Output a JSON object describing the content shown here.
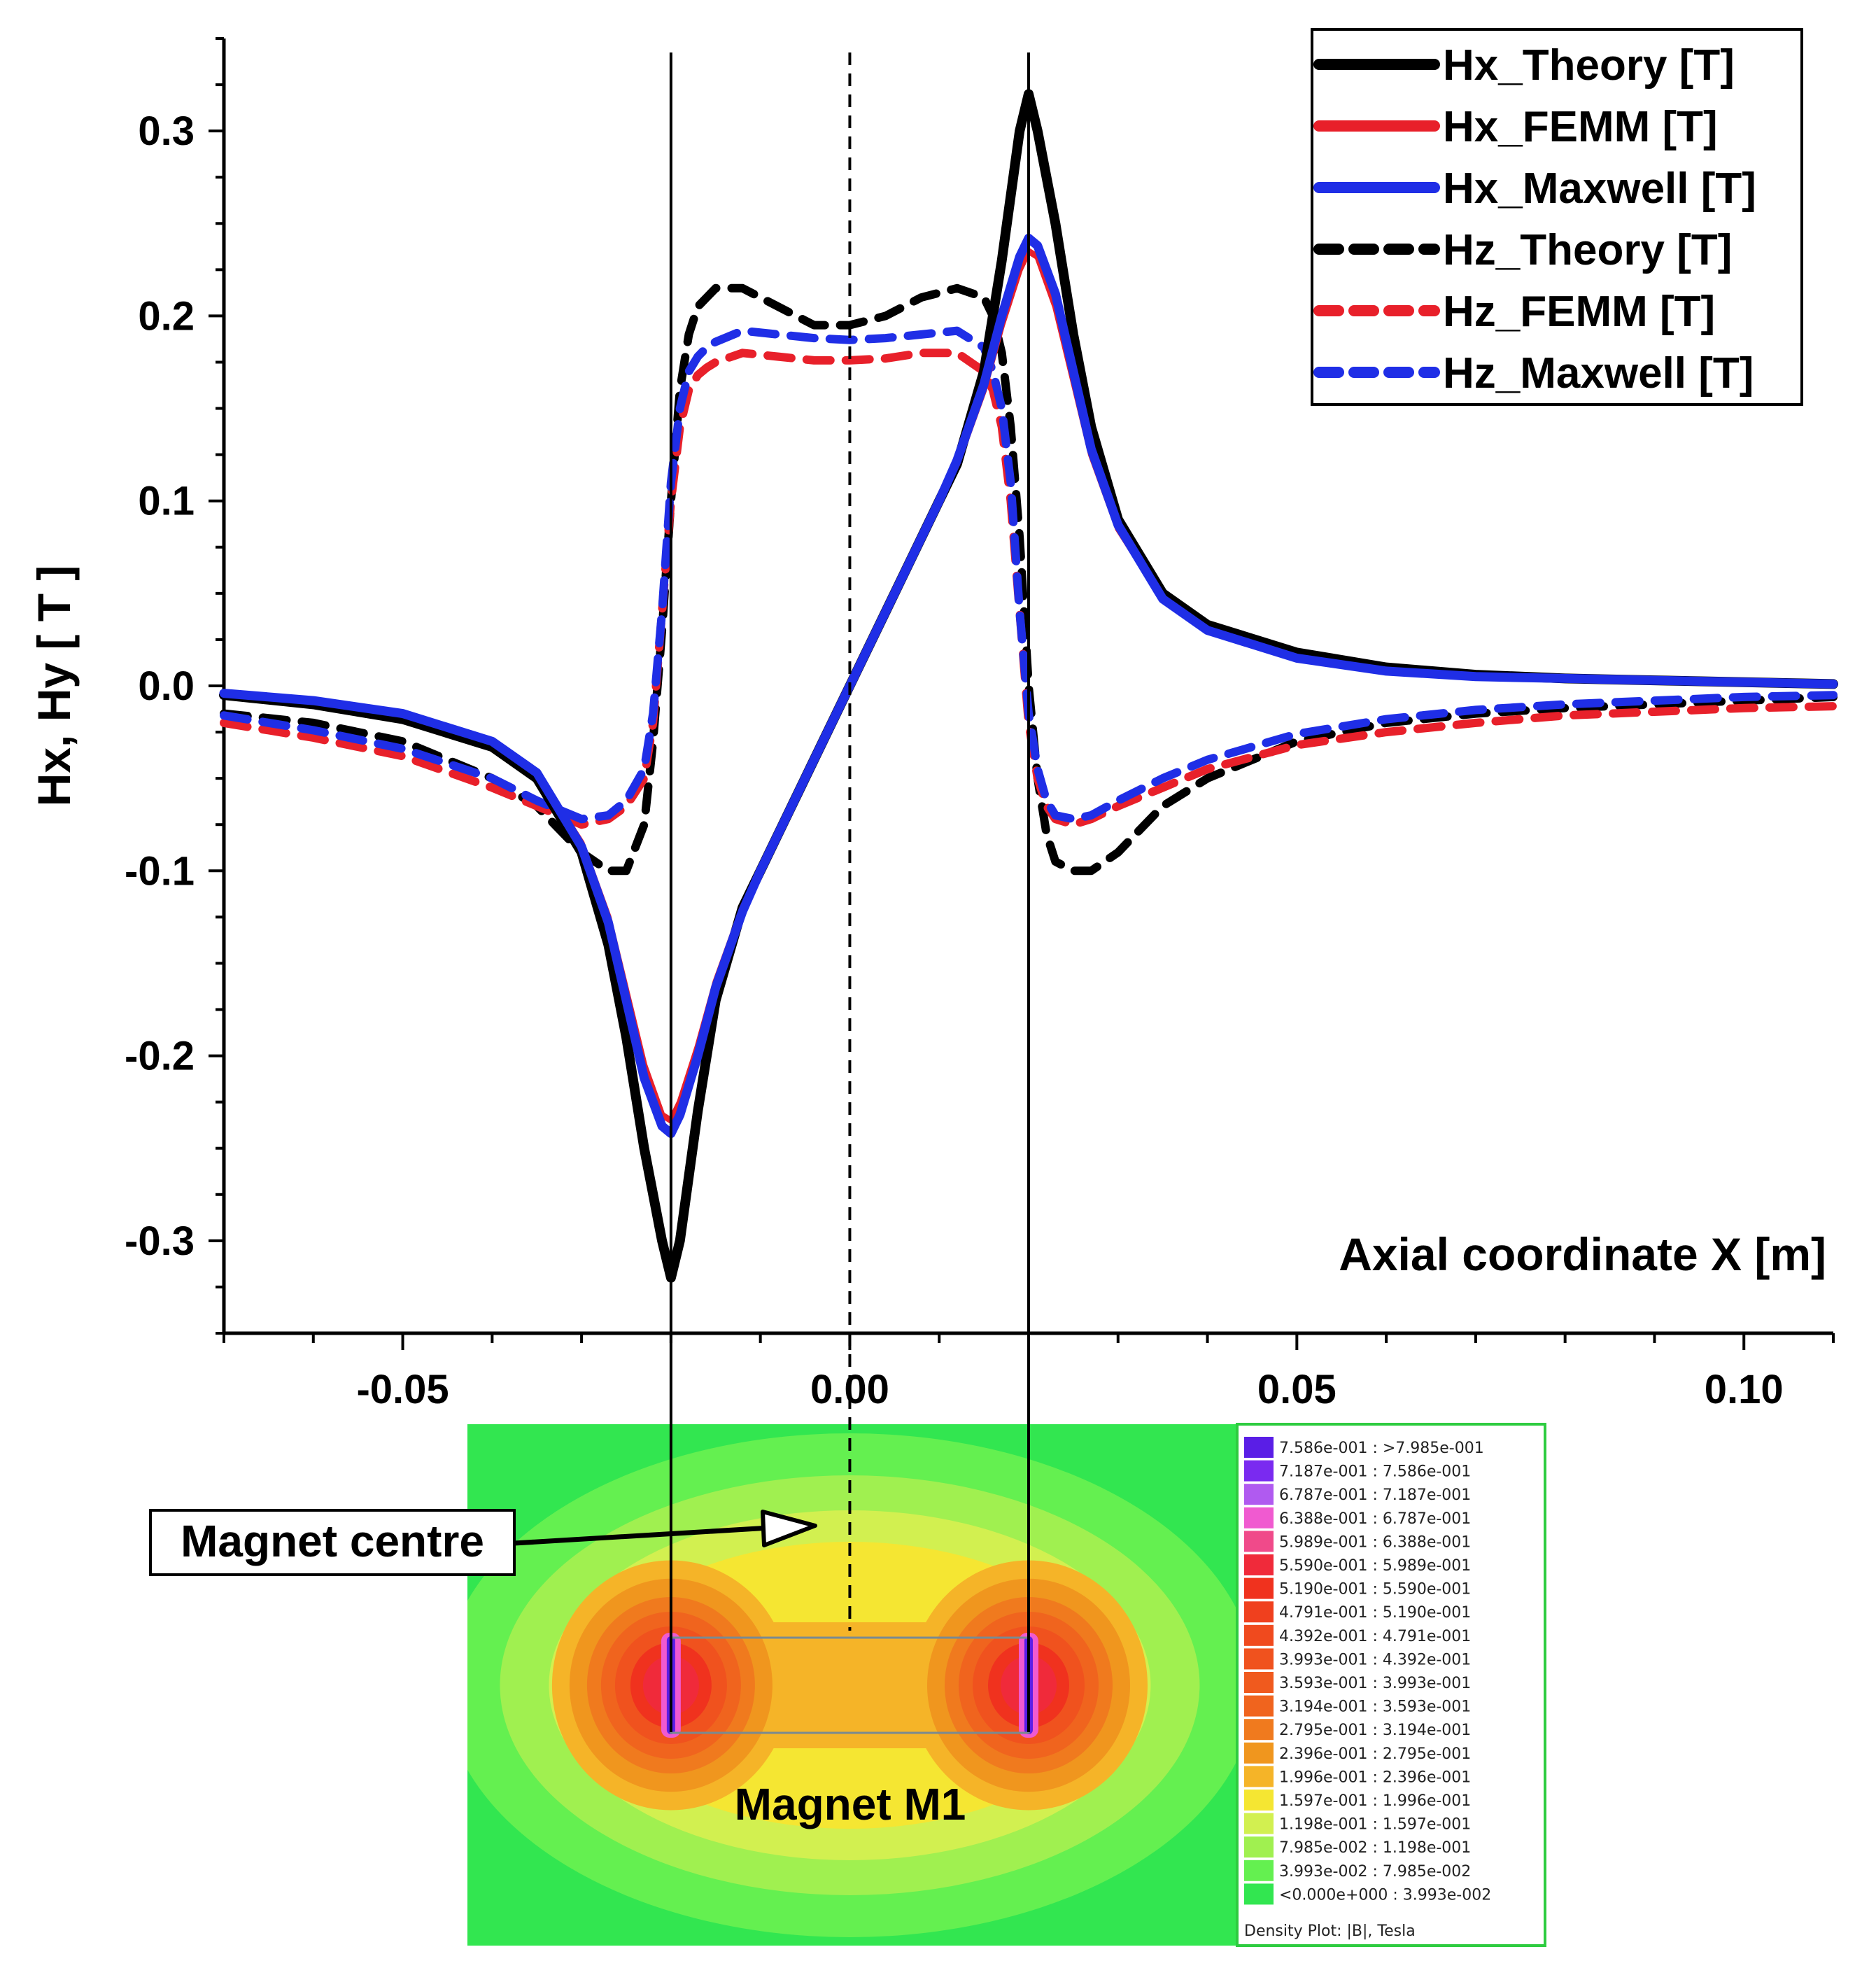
{
  "chart_data": {
    "type": "line",
    "xlabel": "Axial coordinate X [m]",
    "ylabel": "Hx, Hy [ T ]",
    "xlim": [
      -0.07,
      0.11
    ],
    "ylim": [
      -0.35,
      0.35
    ],
    "x_ticks": [
      -0.05,
      0.0,
      0.05,
      0.1
    ],
    "x_tick_labels": [
      "-0.05",
      "0.00",
      "0.05",
      "0.10"
    ],
    "y_ticks": [
      -0.3,
      -0.2,
      -0.1,
      0.0,
      0.1,
      0.2,
      0.3
    ],
    "y_tick_labels": [
      "-0.3",
      "-0.2",
      "-0.1",
      "0.0",
      "0.1",
      "0.2",
      "0.3"
    ],
    "grid": false,
    "legend_position": "top-right",
    "reference_lines": [
      {
        "x": -0.02,
        "style": "solid"
      },
      {
        "x": 0.0,
        "style": "dashed"
      },
      {
        "x": 0.02,
        "style": "solid"
      }
    ],
    "series": [
      {
        "name": "Hx_Theory [T]",
        "color": "#000000",
        "dash": "solid",
        "x": [
          -0.07,
          -0.06,
          -0.05,
          -0.04,
          -0.035,
          -0.03,
          -0.027,
          -0.025,
          -0.023,
          -0.021,
          -0.02,
          -0.019,
          -0.017,
          -0.015,
          -0.012,
          -0.01,
          -0.007,
          -0.004,
          0,
          0.004,
          0.007,
          0.01,
          0.012,
          0.015,
          0.017,
          0.019,
          0.02,
          0.021,
          0.023,
          0.025,
          0.027,
          0.03,
          0.035,
          0.04,
          0.05,
          0.06,
          0.07,
          0.08,
          0.09,
          0.1,
          0.11
        ],
        "y": [
          -0.005,
          -0.01,
          -0.018,
          -0.033,
          -0.05,
          -0.09,
          -0.14,
          -0.19,
          -0.25,
          -0.3,
          -0.32,
          -0.3,
          -0.23,
          -0.17,
          -0.12,
          -0.1,
          -0.07,
          -0.04,
          0,
          0.04,
          0.07,
          0.1,
          0.12,
          0.17,
          0.23,
          0.3,
          0.32,
          0.3,
          0.25,
          0.19,
          0.14,
          0.09,
          0.05,
          0.033,
          0.018,
          0.01,
          0.006,
          0.004,
          0.003,
          0.002,
          0.001
        ]
      },
      {
        "name": "Hx_FEMM [T]",
        "color": "#e8202a",
        "dash": "solid",
        "x": [
          -0.07,
          -0.06,
          -0.05,
          -0.04,
          -0.035,
          -0.03,
          -0.027,
          -0.025,
          -0.023,
          -0.021,
          -0.02,
          -0.019,
          -0.017,
          -0.015,
          -0.012,
          -0.01,
          -0.007,
          -0.004,
          0,
          0.004,
          0.007,
          0.01,
          0.012,
          0.015,
          0.017,
          0.019,
          0.02,
          0.021,
          0.023,
          0.025,
          0.027,
          0.03,
          0.035,
          0.04,
          0.05,
          0.06,
          0.07,
          0.08,
          0.09,
          0.1,
          0.11
        ],
        "y": [
          -0.004,
          -0.008,
          -0.015,
          -0.03,
          -0.047,
          -0.085,
          -0.125,
          -0.165,
          -0.205,
          -0.232,
          -0.235,
          -0.225,
          -0.195,
          -0.16,
          -0.12,
          -0.1,
          -0.07,
          -0.04,
          0,
          0.04,
          0.07,
          0.1,
          0.12,
          0.16,
          0.195,
          0.225,
          0.235,
          0.232,
          0.205,
          0.165,
          0.125,
          0.085,
          0.047,
          0.03,
          0.015,
          0.008,
          0.005,
          0.004,
          0.003,
          0.002,
          0.001
        ]
      },
      {
        "name": "Hx_Maxwell [T]",
        "color": "#1f2ee6",
        "dash": "solid",
        "x": [
          -0.07,
          -0.06,
          -0.05,
          -0.04,
          -0.035,
          -0.03,
          -0.027,
          -0.025,
          -0.023,
          -0.021,
          -0.02,
          -0.019,
          -0.017,
          -0.015,
          -0.012,
          -0.01,
          -0.007,
          -0.004,
          0,
          0.004,
          0.007,
          0.01,
          0.012,
          0.015,
          0.017,
          0.019,
          0.02,
          0.021,
          0.023,
          0.025,
          0.027,
          0.03,
          0.035,
          0.04,
          0.05,
          0.06,
          0.07,
          0.08,
          0.09,
          0.1,
          0.11
        ],
        "y": [
          -0.004,
          -0.008,
          -0.015,
          -0.03,
          -0.047,
          -0.087,
          -0.128,
          -0.17,
          -0.212,
          -0.238,
          -0.242,
          -0.232,
          -0.2,
          -0.163,
          -0.122,
          -0.1,
          -0.07,
          -0.04,
          0,
          0.04,
          0.07,
          0.1,
          0.122,
          0.163,
          0.2,
          0.232,
          0.242,
          0.238,
          0.212,
          0.17,
          0.128,
          0.087,
          0.047,
          0.03,
          0.015,
          0.008,
          0.005,
          0.004,
          0.003,
          0.002,
          0.001
        ]
      },
      {
        "name": "Hz_Theory [T]",
        "color": "#000000",
        "dash": "dashed",
        "x": [
          -0.07,
          -0.06,
          -0.05,
          -0.04,
          -0.035,
          -0.03,
          -0.027,
          -0.025,
          -0.023,
          -0.022,
          -0.021,
          -0.02,
          -0.019,
          -0.018,
          -0.017,
          -0.016,
          -0.015,
          -0.012,
          -0.008,
          -0.004,
          0,
          0.004,
          0.008,
          0.012,
          0.015,
          0.016,
          0.017,
          0.018,
          0.019,
          0.02,
          0.021,
          0.022,
          0.023,
          0.025,
          0.027,
          0.03,
          0.035,
          0.04,
          0.05,
          0.06,
          0.07,
          0.08,
          0.09,
          0.1,
          0.11
        ],
        "y": [
          -0.015,
          -0.02,
          -0.03,
          -0.05,
          -0.065,
          -0.09,
          -0.1,
          -0.1,
          -0.075,
          -0.03,
          0.03,
          0.1,
          0.16,
          0.19,
          0.205,
          0.21,
          0.215,
          0.215,
          0.205,
          0.195,
          0.195,
          0.2,
          0.21,
          0.215,
          0.21,
          0.2,
          0.18,
          0.14,
          0.08,
          0.0,
          -0.05,
          -0.08,
          -0.095,
          -0.1,
          -0.1,
          -0.09,
          -0.065,
          -0.05,
          -0.03,
          -0.02,
          -0.015,
          -0.012,
          -0.01,
          -0.008,
          -0.006
        ]
      },
      {
        "name": "Hz_FEMM [T]",
        "color": "#e8202a",
        "dash": "dashed",
        "x": [
          -0.07,
          -0.06,
          -0.05,
          -0.04,
          -0.035,
          -0.03,
          -0.027,
          -0.025,
          -0.023,
          -0.022,
          -0.021,
          -0.02,
          -0.019,
          -0.018,
          -0.017,
          -0.016,
          -0.015,
          -0.012,
          -0.008,
          -0.004,
          0,
          0.004,
          0.008,
          0.012,
          0.015,
          0.016,
          0.017,
          0.018,
          0.019,
          0.02,
          0.021,
          0.022,
          0.023,
          0.025,
          0.027,
          0.03,
          0.035,
          0.04,
          0.05,
          0.06,
          0.07,
          0.08,
          0.09,
          0.1,
          0.11
        ],
        "y": [
          -0.02,
          -0.028,
          -0.038,
          -0.055,
          -0.065,
          -0.075,
          -0.072,
          -0.065,
          -0.05,
          -0.02,
          0.04,
          0.1,
          0.14,
          0.16,
          0.168,
          0.172,
          0.175,
          0.18,
          0.178,
          0.176,
          0.176,
          0.177,
          0.18,
          0.18,
          0.17,
          0.16,
          0.14,
          0.1,
          0.04,
          -0.02,
          -0.05,
          -0.065,
          -0.072,
          -0.075,
          -0.072,
          -0.065,
          -0.055,
          -0.045,
          -0.032,
          -0.025,
          -0.02,
          -0.016,
          -0.014,
          -0.012,
          -0.011
        ]
      },
      {
        "name": "Hz_Maxwell [T]",
        "color": "#1f2ee6",
        "dash": "dashed",
        "x": [
          -0.07,
          -0.06,
          -0.05,
          -0.04,
          -0.035,
          -0.03,
          -0.027,
          -0.025,
          -0.023,
          -0.022,
          -0.021,
          -0.02,
          -0.019,
          -0.018,
          -0.017,
          -0.016,
          -0.015,
          -0.012,
          -0.008,
          -0.004,
          0,
          0.004,
          0.008,
          0.012,
          0.015,
          0.016,
          0.017,
          0.018,
          0.019,
          0.02,
          0.021,
          0.022,
          0.023,
          0.025,
          0.027,
          0.03,
          0.035,
          0.04,
          0.05,
          0.06,
          0.07,
          0.08,
          0.09,
          0.1,
          0.11
        ],
        "y": [
          -0.016,
          -0.024,
          -0.034,
          -0.05,
          -0.062,
          -0.072,
          -0.07,
          -0.062,
          -0.045,
          -0.015,
          0.04,
          0.11,
          0.15,
          0.17,
          0.178,
          0.183,
          0.186,
          0.192,
          0.19,
          0.188,
          0.187,
          0.188,
          0.19,
          0.192,
          0.183,
          0.17,
          0.15,
          0.11,
          0.04,
          -0.015,
          -0.045,
          -0.062,
          -0.07,
          -0.072,
          -0.07,
          -0.062,
          -0.05,
          -0.04,
          -0.026,
          -0.018,
          -0.013,
          -0.01,
          -0.008,
          -0.006,
          -0.005
        ]
      }
    ]
  },
  "inset": {
    "callout_label": "Magnet centre",
    "magnet_label": "Magnet M1",
    "colorbar_title": "Density Plot: |B|, Tesla",
    "colorbar": [
      {
        "label": "7.586e-001 : >7.985e-001",
        "color": "#5a1ee6"
      },
      {
        "label": "7.187e-001 : 7.586e-001",
        "color": "#7a2af0"
      },
      {
        "label": "6.787e-001 : 7.187e-001",
        "color": "#b05af0"
      },
      {
        "label": "6.388e-001 : 6.787e-001",
        "color": "#f05ad0"
      },
      {
        "label": "5.989e-001 : 6.388e-001",
        "color": "#f04a8a"
      },
      {
        "label": "5.590e-001 : 5.989e-001",
        "color": "#f02a3a"
      },
      {
        "label": "5.190e-001 : 5.590e-001",
        "color": "#f0321e"
      },
      {
        "label": "4.791e-001 : 5.190e-001",
        "color": "#f0401e"
      },
      {
        "label": "4.392e-001 : 4.791e-001",
        "color": "#f04a1e"
      },
      {
        "label": "3.993e-001 : 4.392e-001",
        "color": "#f0521e"
      },
      {
        "label": "3.593e-001 : 3.993e-001",
        "color": "#f05a1e"
      },
      {
        "label": "3.194e-001 : 3.593e-001",
        "color": "#f0641e"
      },
      {
        "label": "2.795e-001 : 3.194e-001",
        "color": "#f07a1e"
      },
      {
        "label": "2.396e-001 : 2.795e-001",
        "color": "#f0961e"
      },
      {
        "label": "1.996e-001 : 2.396e-001",
        "color": "#f5b428"
      },
      {
        "label": "1.597e-001 : 1.996e-001",
        "color": "#f5e632"
      },
      {
        "label": "1.198e-001 : 1.597e-001",
        "color": "#d2f050"
      },
      {
        "label": "7.985e-002 : 1.198e-001",
        "color": "#a0f050"
      },
      {
        "label": "3.993e-002 : 7.985e-002",
        "color": "#64f050"
      },
      {
        "label": "<0.000e+000 : 3.993e-002",
        "color": "#32e650"
      }
    ]
  }
}
